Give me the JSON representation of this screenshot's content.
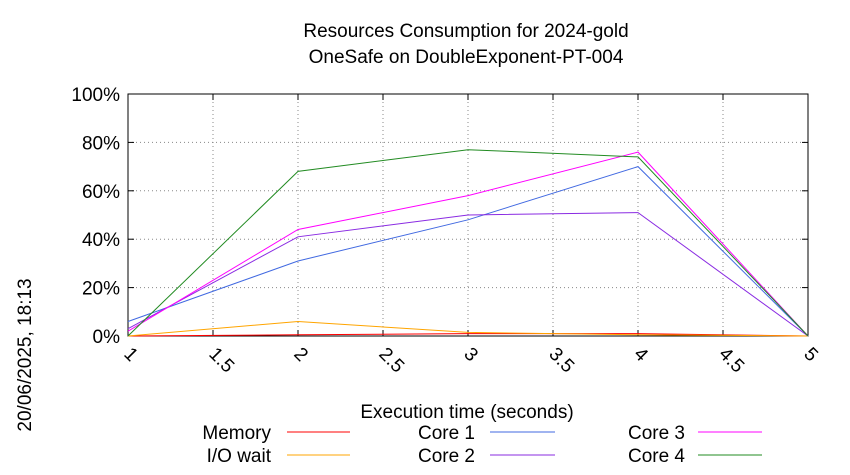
{
  "chart_data": {
    "type": "line",
    "title": "Resources Consumption for 2024-gold",
    "subtitle": "OneSafe on DoubleExponent-PT-004",
    "xlabel": "Execution time (seconds)",
    "ylabel": "",
    "side_label": "20/06/2025, 18:13",
    "x": [
      1,
      2,
      3,
      4,
      5
    ],
    "xlim": [
      1,
      5
    ],
    "ylim": [
      0,
      100
    ],
    "x_ticks": [
      "1",
      "1.5",
      "2",
      "2.5",
      "3",
      "3.5",
      "4",
      "4.5",
      "5"
    ],
    "y_ticks": [
      "0%",
      "20%",
      "40%",
      "60%",
      "80%",
      "100%"
    ],
    "grid": true,
    "legend_position": "bottom",
    "series": [
      {
        "name": "Memory",
        "color": "#ff0000",
        "values": [
          0,
          0.5,
          1,
          1,
          0
        ]
      },
      {
        "name": "I/O wait",
        "color": "#ffa500",
        "values": [
          0,
          6,
          1.5,
          0.5,
          0
        ]
      },
      {
        "name": "Core 1",
        "color": "#4169e1",
        "values": [
          6,
          31,
          48,
          70,
          0
        ]
      },
      {
        "name": "Core 2",
        "color": "#8a2be2",
        "values": [
          3,
          41,
          50,
          51,
          0
        ]
      },
      {
        "name": "Core 3",
        "color": "#ff00ff",
        "values": [
          2,
          44,
          58,
          76,
          0
        ]
      },
      {
        "name": "Core 4",
        "color": "#228b22",
        "values": [
          0,
          68,
          77,
          74,
          0
        ]
      }
    ]
  }
}
